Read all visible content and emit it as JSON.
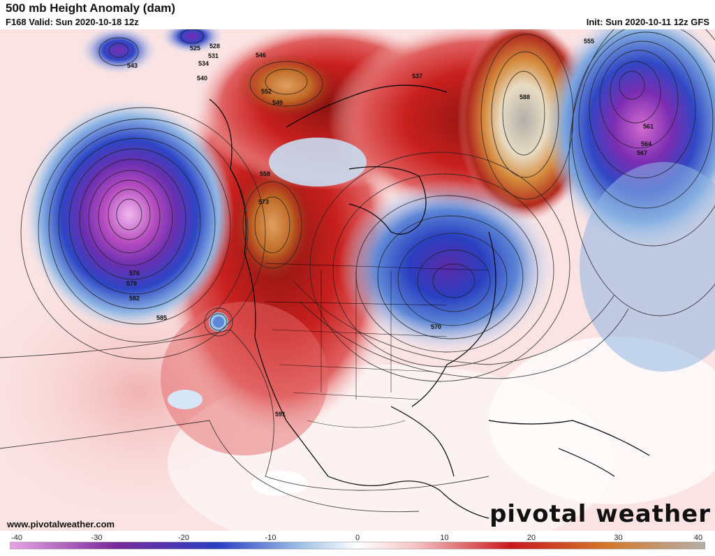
{
  "header": {
    "title": "500 mb Height Anomaly (dam)",
    "valid": "F168 Valid: Sun 2020-10-18 12z",
    "init": "Init: Sun 2020-10-11 12z GFS"
  },
  "footer": {
    "website": "www.pivotalweather.com",
    "logo": "pivotal weather"
  },
  "colorbar": {
    "min": -40,
    "max": 40,
    "ticks": [
      -40,
      -30,
      -20,
      -10,
      0,
      10,
      20,
      30,
      40
    ],
    "colors": {
      "neg_extreme": "#e9a6e6",
      "neg_purple": "#7a2a9a",
      "neg_blue": "#2a3fc4",
      "neg_light": "#9ec3e6",
      "neutral": "#ffffff",
      "pos_light": "#f6c7c7",
      "pos_red": "#c8181e",
      "pos_orange": "#d4782a",
      "pos_extreme": "#b5b0aa"
    }
  },
  "map_data": {
    "contour_labels": [
      {
        "text": "525"
      },
      {
        "text": "528"
      },
      {
        "text": "531"
      },
      {
        "text": "534"
      },
      {
        "text": "540"
      },
      {
        "text": "543"
      },
      {
        "text": "546"
      },
      {
        "text": "552"
      },
      {
        "text": "549"
      },
      {
        "text": "537"
      },
      {
        "text": "555"
      },
      {
        "text": "558"
      },
      {
        "text": "561"
      },
      {
        "text": "564"
      },
      {
        "text": "567"
      },
      {
        "text": "570"
      },
      {
        "text": "573"
      },
      {
        "text": "576"
      },
      {
        "text": "579"
      },
      {
        "text": "582"
      },
      {
        "text": "585"
      },
      {
        "text": "588"
      },
      {
        "text": "591"
      }
    ]
  }
}
